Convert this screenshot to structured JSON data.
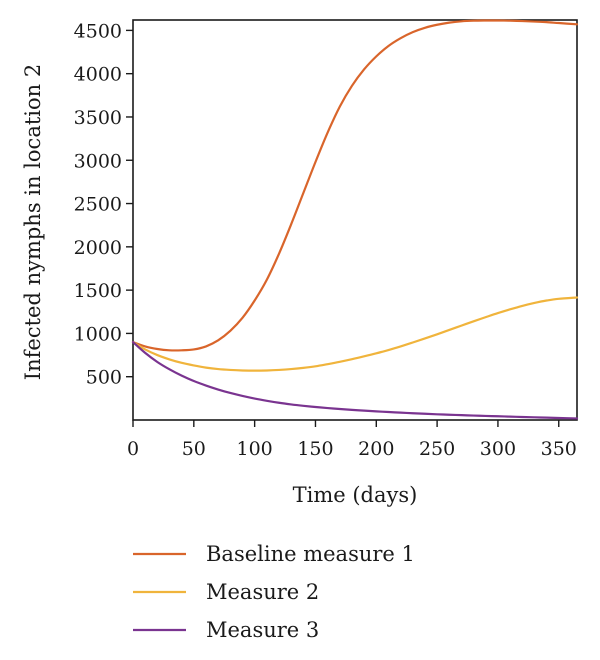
{
  "chart_data": {
    "type": "line",
    "title": "",
    "xlabel": "Time (days)",
    "ylabel": "Infected nymphs in location 2",
    "xlim": [
      0,
      365
    ],
    "ylim": [
      0,
      4620
    ],
    "xticks": [
      0,
      50,
      100,
      150,
      200,
      250,
      300,
      350
    ],
    "yticks": [
      500,
      1000,
      1500,
      2000,
      2500,
      3000,
      3500,
      4000,
      4500
    ],
    "grid": false,
    "legend_position": "bottom",
    "series": [
      {
        "name": "Baseline measure 1",
        "color": "#d9652b",
        "x": [
          0,
          10,
          20,
          30,
          40,
          50,
          60,
          70,
          80,
          90,
          100,
          110,
          120,
          130,
          140,
          150,
          160,
          170,
          180,
          190,
          200,
          210,
          220,
          230,
          240,
          250,
          260,
          270,
          280,
          290,
          300,
          310,
          320,
          330,
          340,
          350,
          365
        ],
        "y": [
          900,
          850,
          820,
          805,
          805,
          815,
          850,
          920,
          1030,
          1180,
          1380,
          1620,
          1920,
          2260,
          2620,
          2980,
          3320,
          3620,
          3860,
          4050,
          4200,
          4320,
          4410,
          4480,
          4530,
          4565,
          4590,
          4605,
          4612,
          4614,
          4614,
          4612,
          4608,
          4602,
          4595,
          4585,
          4570
        ]
      },
      {
        "name": "Measure 2",
        "color": "#f0b43c",
        "x": [
          0,
          10,
          20,
          30,
          40,
          50,
          60,
          70,
          80,
          90,
          100,
          110,
          120,
          130,
          140,
          150,
          160,
          170,
          180,
          190,
          200,
          210,
          220,
          230,
          240,
          250,
          260,
          270,
          280,
          290,
          300,
          310,
          320,
          330,
          340,
          350,
          365
        ],
        "y": [
          900,
          815,
          750,
          700,
          660,
          630,
          605,
          588,
          578,
          572,
          570,
          572,
          578,
          588,
          602,
          620,
          645,
          672,
          702,
          735,
          770,
          808,
          850,
          895,
          942,
          990,
          1040,
          1090,
          1140,
          1188,
          1235,
          1278,
          1318,
          1352,
          1380,
          1400,
          1415
        ]
      },
      {
        "name": "Measure 3",
        "color": "#7a3490",
        "x": [
          0,
          10,
          20,
          30,
          40,
          50,
          60,
          70,
          80,
          90,
          100,
          110,
          120,
          130,
          140,
          150,
          160,
          170,
          180,
          190,
          200,
          210,
          220,
          230,
          240,
          250,
          260,
          270,
          280,
          290,
          300,
          310,
          320,
          330,
          340,
          350,
          365
        ],
        "y": [
          900,
          775,
          670,
          585,
          512,
          450,
          398,
          352,
          312,
          278,
          248,
          222,
          199,
          180,
          164,
          150,
          138,
          127,
          117,
          108,
          100,
          92,
          85,
          78,
          72,
          66,
          61,
          56,
          51,
          47,
          43,
          39,
          35,
          31,
          27,
          23,
          18
        ]
      }
    ]
  }
}
